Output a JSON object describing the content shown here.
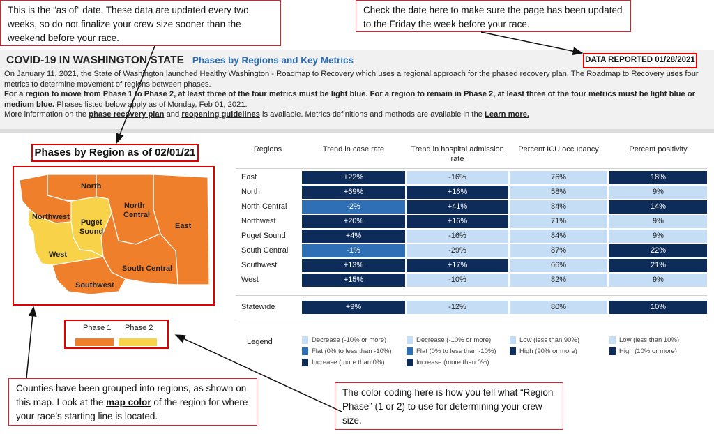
{
  "callouts": {
    "asof": "This is the “as of” date. These data are updated every two weeks, so do not finalize your crew size sooner than the weekend before your race.",
    "check": "Check the date here to make sure the page has been updated to the Friday the week before your race.",
    "counties_pre": "Counties have been grouped into regions, as shown on this map. Look at the ",
    "counties_em": "map color",
    "counties_post": " of the region for where your race’s starting line is located.",
    "color": "The color coding here is how you tell what “Region Phase” (1 or 2) to use for determining your crew size."
  },
  "header": {
    "title": "COVID-19 IN WASHINGTON STATE",
    "subtitle": "Phases by Regions and Key Metrics",
    "reported": "DATA REPORTED 01/28/2021",
    "intro": " On January 11, 2021, the State of Washington launched Healthy Washington - Roadmap to Recovery which uses a regional approach for the phased recovery plan. The Roadmap to Recovery uses four metrics to determine movement of regions between phases.",
    "rule": "For a region to move from Phase 1 to Phase 2, at least three of the four metrics must be light blue. For a region to remain in Phase 2, at least three of the four metrics must be light blue or medium blue.",
    "applies": " Phases listed below apply as of Monday, Feb 01, 2021.",
    "more_pre": "More information on the ",
    "link_plan": "phase recovery plan",
    "more_and": " and ",
    "link_guidelines": "reopening guidelines",
    "more_mid": " is available. Metrics definitions and methods are available in the ",
    "link_learn": "Learn more.",
    "more_end": ""
  },
  "map": {
    "title": "Phases by Region as of 02/01/21",
    "phase1_label": "Phase 1",
    "phase2_label": "Phase 2",
    "phase1_color": "#f07f2b",
    "phase2_color": "#f8d34a",
    "regions": {
      "north": "North",
      "north_central_1": "North",
      "north_central_2": "Central",
      "northwest": "Northwest",
      "puget_1": "Puget",
      "puget_2": "Sound",
      "east": "East",
      "west": "West",
      "south_central": "South Central",
      "southwest": "Southwest"
    }
  },
  "table": {
    "headers": [
      "Regions",
      "Trend in case rate",
      "Trend in hospital admission rate",
      "Percent ICU occupancy",
      "Percent positivity"
    ],
    "rows": [
      {
        "region": "East",
        "case": "+22%",
        "case_c": "db",
        "hosp": "-16%",
        "hosp_c": "lb",
        "icu": "76%",
        "icu_c": "lb",
        "pos": "18%",
        "pos_c": "db"
      },
      {
        "region": "North",
        "case": "+69%",
        "case_c": "db",
        "hosp": "+16%",
        "hosp_c": "db",
        "icu": "58%",
        "icu_c": "lb",
        "pos": "9%",
        "pos_c": "lb"
      },
      {
        "region": "North Central",
        "case": "-2%",
        "case_c": "mb",
        "hosp": "+41%",
        "hosp_c": "db",
        "icu": "84%",
        "icu_c": "lb",
        "pos": "14%",
        "pos_c": "db"
      },
      {
        "region": "Northwest",
        "case": "+20%",
        "case_c": "db",
        "hosp": "+16%",
        "hosp_c": "db",
        "icu": "71%",
        "icu_c": "lb",
        "pos": "9%",
        "pos_c": "lb"
      },
      {
        "region": "Puget Sound",
        "case": "+4%",
        "case_c": "db",
        "hosp": "-16%",
        "hosp_c": "lb",
        "icu": "84%",
        "icu_c": "lb",
        "pos": "9%",
        "pos_c": "lb"
      },
      {
        "region": "South Central",
        "case": "-1%",
        "case_c": "mb",
        "hosp": "-29%",
        "hosp_c": "lb",
        "icu": "87%",
        "icu_c": "lb",
        "pos": "22%",
        "pos_c": "db"
      },
      {
        "region": "Southwest",
        "case": "+13%",
        "case_c": "db",
        "hosp": "+17%",
        "hosp_c": "db",
        "icu": "66%",
        "icu_c": "lb",
        "pos": "21%",
        "pos_c": "db"
      },
      {
        "region": "West",
        "case": "+15%",
        "case_c": "db",
        "hosp": "-10%",
        "hosp_c": "lb",
        "icu": "82%",
        "icu_c": "lb",
        "pos": "9%",
        "pos_c": "lb"
      }
    ],
    "statewide": {
      "region": "Statewide",
      "case": "+9%",
      "case_c": "db",
      "hosp": "-12%",
      "hosp_c": "lb",
      "icu": "80%",
      "icu_c": "lb",
      "pos": "10%",
      "pos_c": "db"
    },
    "colors": {
      "lb": "#c6def5",
      "mb": "#2e6fb5",
      "db": "#0e2c5a"
    }
  },
  "legend": {
    "title": "Legend",
    "case": [
      "Decrease (-10% or more)",
      "Flat (0% to less than -10%)",
      "Increase (more than 0%)"
    ],
    "hosp": [
      "Decrease (-10% or more)",
      "Flat (0% to less than -10%)",
      "Increase (more than 0%)"
    ],
    "icu": [
      "Low (less than 90%)",
      "High (90% or more)"
    ],
    "pos": [
      "Low (less than 10%)",
      "High (10% or more)"
    ]
  }
}
